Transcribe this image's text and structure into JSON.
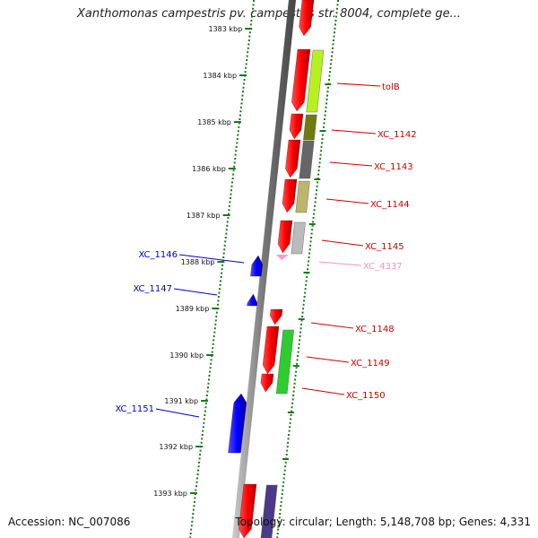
{
  "header": {
    "title": "Xanthomonas campestris pv. campestris str. 8004, complete ge..."
  },
  "footer": {
    "accession": "Accession: NC_007086",
    "topology": "Topology: circular; Length: 5,148,708 bp; Genes: 4,331"
  },
  "kbp_labels": [
    "1383 kbp",
    "1384 kbp",
    "1385 kbp",
    "1386 kbp",
    "1387 kbp",
    "1388 kbp",
    "1389 kbp",
    "1390 kbp",
    "1391 kbp",
    "1392 kbp",
    "1393 kbp"
  ],
  "genes_right": [
    {
      "name": "tolB",
      "color": "#cc0000"
    },
    {
      "name": "XC_1142",
      "color": "#cc0000"
    },
    {
      "name": "XC_1143",
      "color": "#cc0000"
    },
    {
      "name": "XC_1144",
      "color": "#cc0000"
    },
    {
      "name": "XC_1145",
      "color": "#cc0000"
    },
    {
      "name": "XC_4337",
      "color": "#ff8fc0"
    },
    {
      "name": "XC_1148",
      "color": "#cc0000"
    },
    {
      "name": "XC_1149",
      "color": "#cc0000"
    },
    {
      "name": "XC_1150",
      "color": "#cc0000"
    }
  ],
  "genes_left": [
    {
      "name": "XC_1146",
      "color": "#0000cc"
    },
    {
      "name": "XC_1147",
      "color": "#0000cc"
    },
    {
      "name": "XC_1151",
      "color": "#0000cc"
    }
  ],
  "colors": {
    "forward_gene": "#ff0000",
    "reverse_gene": "#0000ff",
    "rna_gene": "#ff99cc",
    "tick": "#1a7a1a",
    "backbone": "#888888"
  }
}
